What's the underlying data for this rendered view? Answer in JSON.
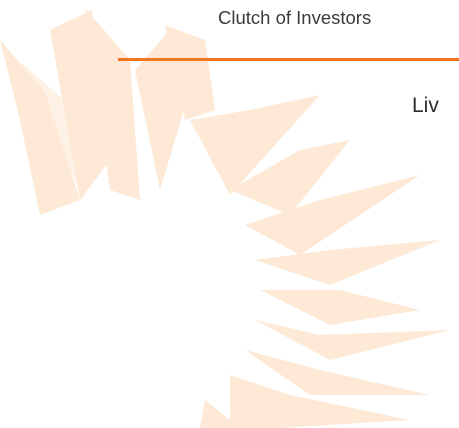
{
  "slide": {
    "header_text": "Clutch of Investors",
    "sub_text": "Liv"
  },
  "colors": {
    "accent_rule": "#ee7521",
    "sunburst_fill": "#fbe3cd",
    "text": "#3b3b3b",
    "background": "#ffffff"
  },
  "icons": {
    "background_logo": "sunburst-logo"
  }
}
